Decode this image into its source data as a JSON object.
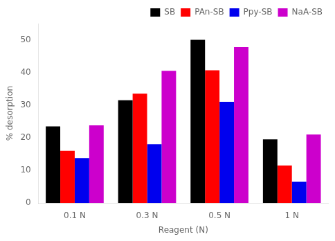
{
  "chart_data": {
    "type": "bar",
    "categories": [
      "0.1 N",
      "0.3 N",
      "0.5 N",
      "1 N"
    ],
    "series": [
      {
        "name": "SB",
        "color": "#000000",
        "values": [
          23.5,
          31.5,
          50.0,
          19.5
        ]
      },
      {
        "name": "PAn-SB",
        "color": "#ff0000",
        "values": [
          16.0,
          33.5,
          40.7,
          11.5
        ]
      },
      {
        "name": "Ppy-SB",
        "color": "#0000ee",
        "values": [
          13.8,
          18.0,
          31.0,
          6.5
        ]
      },
      {
        "name": "NaA-SB",
        "color": "#cc00cc",
        "values": [
          23.8,
          40.5,
          47.8,
          21.0
        ]
      }
    ],
    "xlabel": "Reagent (N)",
    "ylabel": "% desorption",
    "ylim": [
      0,
      55
    ],
    "yticks": [
      0,
      10,
      20,
      30,
      40,
      50
    ],
    "grid": false,
    "legend": "upper right"
  }
}
